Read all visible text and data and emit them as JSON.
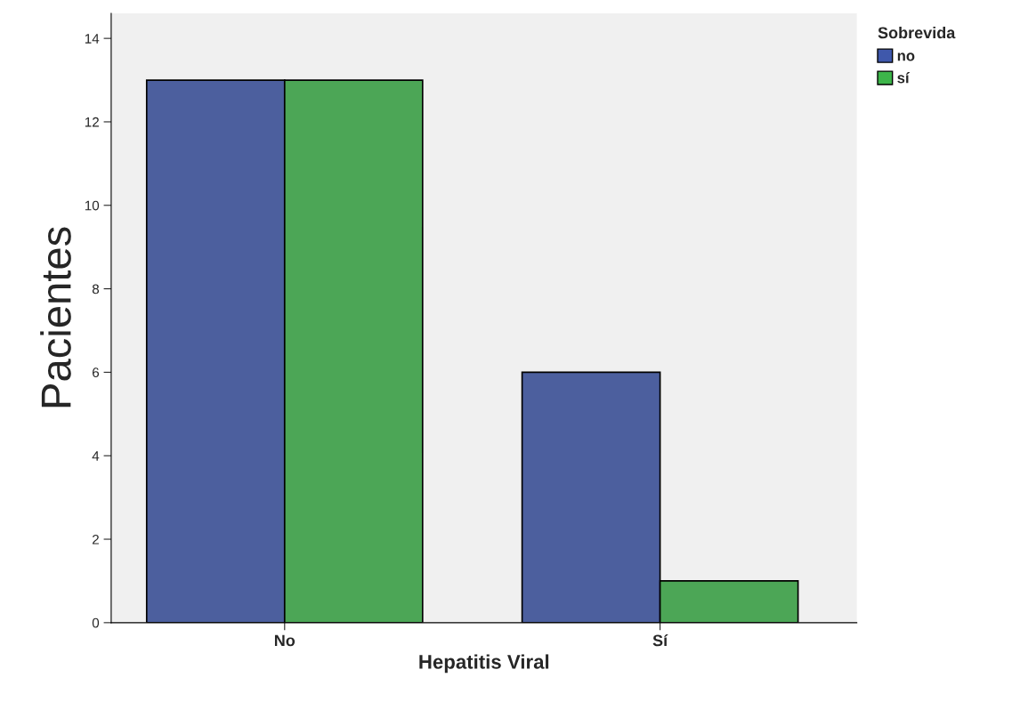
{
  "chart_data": {
    "type": "bar",
    "xlabel": "Hepatitis Viral",
    "ylabel": "Pacientes",
    "legend_title": "Sobrevida",
    "categories": [
      "No",
      "Sí"
    ],
    "series": [
      {
        "name": "no",
        "color": "#3f58ab",
        "values": [
          13,
          6
        ]
      },
      {
        "name": "sí",
        "color": "#3db54a",
        "values": [
          13,
          1
        ]
      }
    ],
    "ylim": [
      0,
      14.6
    ],
    "yticks": [
      0,
      2,
      4,
      6,
      8,
      10,
      12,
      14
    ],
    "grid": false,
    "legend": "top right"
  }
}
